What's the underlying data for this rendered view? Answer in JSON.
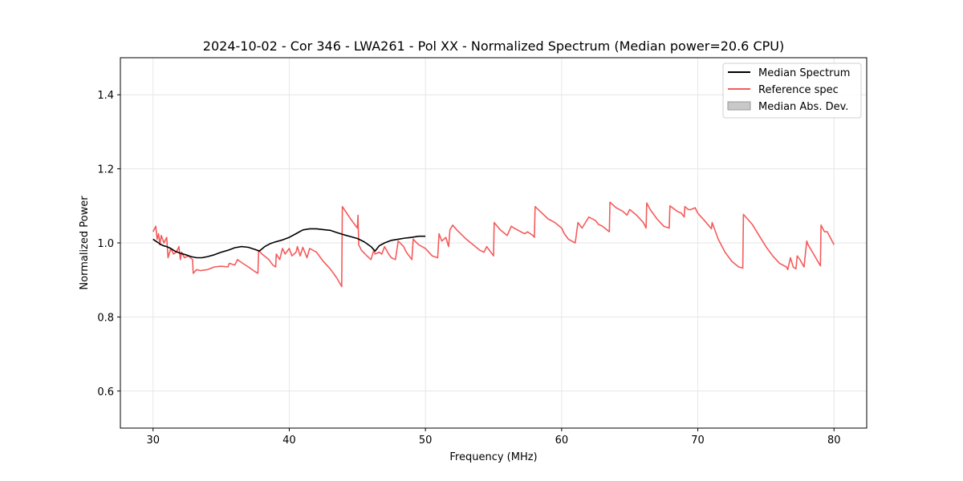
{
  "chart_data": {
    "type": "line",
    "title": "2024-10-02 - Cor 346 - LWA261 - Pol XX - Normalized Spectrum (Median power=20.6 CPU)",
    "xlabel": "Frequency (MHz)",
    "ylabel": "Normalized Power",
    "xlim": [
      27.6,
      82.4
    ],
    "ylim": [
      0.5,
      1.5
    ],
    "xticks": [
      30,
      40,
      50,
      60,
      70,
      80
    ],
    "yticks": [
      0.6,
      0.8,
      1.0,
      1.2,
      1.4
    ],
    "xtick_labels": [
      "30",
      "40",
      "50",
      "60",
      "70",
      "80"
    ],
    "ytick_labels": [
      "0.6",
      "0.8",
      "1.0",
      "1.2",
      "1.4"
    ],
    "grid": true,
    "legend_position": "top-right",
    "legend": [
      {
        "label": "Median Spectrum",
        "kind": "line",
        "color": "#000000"
      },
      {
        "label": "Reference spec",
        "kind": "line",
        "color": "#f55b5b"
      },
      {
        "label": "Median Abs. Dev.",
        "kind": "patch",
        "color": "#c8c8c8"
      }
    ],
    "series": [
      {
        "name": "Median Spectrum",
        "color": "#000000",
        "x": [
          30.0,
          30.2,
          30.4,
          30.6,
          30.8,
          31.0,
          31.3,
          31.6,
          32.0,
          32.4,
          32.8,
          33.2,
          33.6,
          34.0,
          34.5,
          35.0,
          35.5,
          36.0,
          36.5,
          37.0,
          37.5,
          37.8,
          38.2,
          38.6,
          39.0,
          39.5,
          40.0,
          40.5,
          41.0,
          41.5,
          42.0,
          42.5,
          43.0,
          43.5,
          44.0,
          44.5,
          45.0,
          45.5,
          46.0,
          46.3,
          46.6,
          47.0,
          47.5,
          48.0,
          48.5,
          49.0,
          49.5,
          50.0
        ],
        "y": [
          1.01,
          1.005,
          1.0,
          0.995,
          0.992,
          0.99,
          0.985,
          0.978,
          0.972,
          0.968,
          0.963,
          0.96,
          0.96,
          0.963,
          0.968,
          0.975,
          0.98,
          0.987,
          0.99,
          0.988,
          0.982,
          0.978,
          0.99,
          0.998,
          1.003,
          1.008,
          1.015,
          1.025,
          1.035,
          1.038,
          1.038,
          1.036,
          1.034,
          1.028,
          1.022,
          1.017,
          1.012,
          1.003,
          0.99,
          0.978,
          0.992,
          1.0,
          1.007,
          1.01,
          1.013,
          1.015,
          1.018,
          1.018
        ]
      },
      {
        "name": "Reference spec",
        "color": "#f55b5b",
        "x": [
          30.0,
          30.2,
          30.3,
          30.4,
          30.5,
          30.6,
          30.8,
          31.0,
          31.1,
          31.3,
          31.5,
          31.7,
          31.9,
          32.0,
          32.1,
          32.3,
          32.6,
          32.9,
          32.95,
          33.2,
          33.5,
          34.0,
          34.5,
          35.0,
          35.5,
          35.6,
          36.0,
          36.2,
          36.5,
          37.0,
          37.5,
          37.7,
          37.75,
          38.0,
          38.5,
          38.8,
          39.0,
          39.05,
          39.3,
          39.5,
          39.7,
          40.0,
          40.2,
          40.5,
          40.6,
          40.8,
          41.0,
          41.3,
          41.5,
          42.0,
          42.5,
          43.0,
          43.5,
          43.85,
          43.9,
          44.5,
          45.0,
          45.05,
          45.1,
          45.3,
          45.7,
          46.0,
          46.2,
          46.3,
          46.6,
          46.8,
          47.0,
          47.3,
          47.5,
          47.8,
          48.0,
          48.4,
          48.6,
          48.8,
          49.0,
          49.1,
          49.5,
          50.0,
          50.5,
          50.9,
          51.0,
          51.2,
          51.5,
          51.7,
          51.8,
          52.0,
          52.3,
          53.0,
          53.5,
          54.0,
          54.3,
          54.5,
          55.0,
          55.05,
          55.5,
          56.0,
          56.3,
          56.5,
          57.0,
          57.3,
          57.5,
          57.9,
          58.0,
          58.05,
          59.0,
          59.5,
          60.0,
          60.2,
          60.5,
          61.0,
          61.2,
          61.5,
          62.0,
          62.5,
          62.7,
          63.0,
          63.5,
          63.55,
          64.0,
          64.5,
          64.8,
          65.0,
          65.5,
          66.0,
          66.2,
          66.25,
          66.5,
          67.0,
          67.5,
          67.9,
          67.95,
          68.5,
          68.8,
          69.0,
          69.05,
          69.3,
          69.5,
          69.8,
          70.0,
          70.5,
          71.0,
          71.05,
          71.5,
          72.0,
          72.5,
          73.0,
          73.3,
          73.35,
          74.0,
          74.5,
          75.0,
          75.5,
          76.0,
          76.5,
          76.6,
          76.8,
          77.0,
          77.2,
          77.3,
          77.5,
          77.8,
          78.0,
          78.1,
          78.5,
          79.0,
          79.05,
          79.3,
          79.5,
          80.0
        ],
        "y": [
          1.03,
          1.045,
          1.01,
          1.025,
          0.995,
          1.02,
          1.0,
          1.015,
          0.96,
          0.985,
          0.97,
          0.975,
          0.99,
          0.955,
          0.975,
          0.96,
          0.965,
          0.955,
          0.918,
          0.928,
          0.925,
          0.928,
          0.935,
          0.937,
          0.935,
          0.945,
          0.94,
          0.955,
          0.947,
          0.935,
          0.922,
          0.918,
          0.98,
          0.97,
          0.955,
          0.94,
          0.935,
          0.97,
          0.955,
          0.985,
          0.97,
          0.985,
          0.965,
          0.975,
          0.99,
          0.965,
          0.988,
          0.96,
          0.985,
          0.975,
          0.95,
          0.93,
          0.905,
          0.882,
          1.098,
          1.065,
          1.04,
          1.075,
          0.995,
          0.98,
          0.965,
          0.955,
          0.98,
          0.97,
          0.975,
          0.97,
          0.99,
          0.97,
          0.96,
          0.955,
          1.005,
          0.99,
          0.975,
          0.965,
          0.955,
          1.01,
          0.995,
          0.985,
          0.965,
          0.96,
          1.025,
          1.005,
          1.015,
          0.99,
          1.035,
          1.048,
          1.035,
          1.01,
          0.995,
          0.98,
          0.975,
          0.99,
          0.965,
          1.055,
          1.035,
          1.02,
          1.045,
          1.04,
          1.03,
          1.025,
          1.03,
          1.02,
          1.015,
          1.098,
          1.065,
          1.055,
          1.04,
          1.025,
          1.01,
          1.0,
          1.055,
          1.04,
          1.07,
          1.06,
          1.05,
          1.045,
          1.03,
          1.11,
          1.095,
          1.085,
          1.075,
          1.09,
          1.075,
          1.055,
          1.04,
          1.108,
          1.09,
          1.065,
          1.045,
          1.04,
          1.1,
          1.085,
          1.08,
          1.07,
          1.098,
          1.09,
          1.09,
          1.095,
          1.08,
          1.06,
          1.038,
          1.055,
          1.01,
          0.975,
          0.95,
          0.935,
          0.932,
          1.077,
          1.05,
          1.02,
          0.99,
          0.965,
          0.945,
          0.935,
          0.928,
          0.96,
          0.935,
          0.93,
          0.965,
          0.955,
          0.935,
          1.005,
          0.995,
          0.97,
          0.938,
          1.048,
          1.03,
          1.03,
          0.995
        ]
      }
    ]
  }
}
